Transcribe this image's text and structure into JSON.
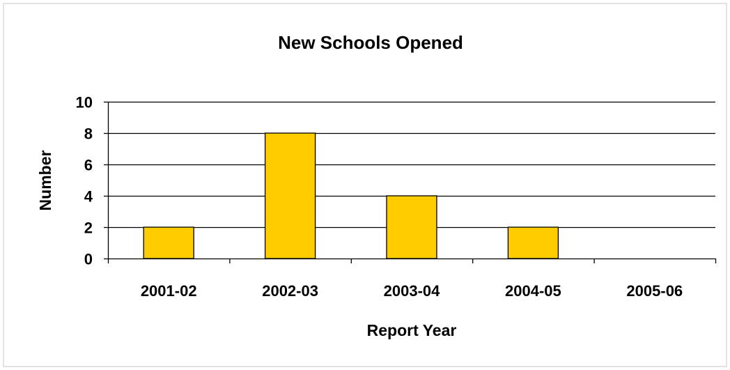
{
  "chart_data": {
    "type": "bar",
    "title": "New Schools Opened",
    "xlabel": "Report Year",
    "ylabel": "Number",
    "categories": [
      "2001-02",
      "2002-03",
      "2003-04",
      "2004-05",
      "2005-06"
    ],
    "values": [
      2,
      8,
      4,
      2,
      0
    ],
    "ylim": [
      0,
      10
    ],
    "yticks": [
      0,
      2,
      4,
      6,
      8,
      10
    ],
    "ytick_labels": [
      "0",
      "2",
      "4",
      "6",
      "8",
      "10"
    ],
    "grid": true,
    "legend": "none",
    "colors": {
      "bar_fill": "#FFCC00",
      "bar_stroke": "#000000",
      "gridline": "#000000",
      "frame_border": "#e3e3e3",
      "background": "#ffffff"
    }
  }
}
